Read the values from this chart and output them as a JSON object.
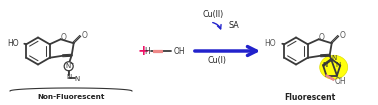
{
  "bg_color": "#ffffff",
  "bond_color": "#3a3a3a",
  "arrow_color": "#2222cc",
  "plus_color": "#ee1166",
  "alkyne_color": "#ee8888",
  "highlight_color": "#ffff00",
  "highlight_edge": "#dddd00",
  "label_color": "#222222",
  "cu_arrow_color": "#2222cc",
  "left_label": "Non-Fluorescent",
  "right_label": "Fluorescent",
  "cu2_text": "Cu(II)",
  "cu1_text": "Cu(I)",
  "sa_text": "SA",
  "O_color": "#333333",
  "N_color": "#333333"
}
